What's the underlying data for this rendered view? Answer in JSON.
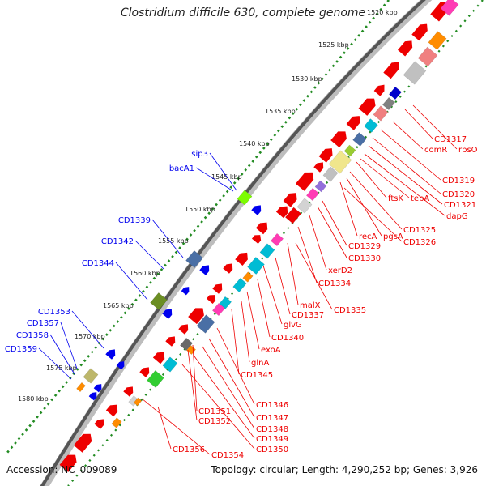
{
  "title": "Clostridium difficile 630, complete genome",
  "footer": {
    "accession": "Accession: NC_009089",
    "stats": "Topology: circular; Length: 4,290,252 bp; Genes: 3,926"
  },
  "colors": {
    "forward_genes": "#0000ee",
    "reverse_genes": "#ee0000",
    "backbone": "#555555",
    "ruler_dots": "#228b22"
  },
  "ruler": [
    {
      "label": "1520 kbp"
    },
    {
      "label": "1525 kbp"
    },
    {
      "label": "1530 kbp"
    },
    {
      "label": "1535 kbp"
    },
    {
      "label": "1540 kbp"
    },
    {
      "label": "1545 kbp"
    },
    {
      "label": "1550 kbp"
    },
    {
      "label": "1555 kbp"
    },
    {
      "label": "1560 kbp"
    },
    {
      "label": "1565 kbp"
    },
    {
      "label": "1570 kbp"
    },
    {
      "label": "1575 kbp"
    },
    {
      "label": "1580 kbp"
    }
  ],
  "forward_labels": [
    {
      "text": "sip3"
    },
    {
      "text": "bacA1"
    },
    {
      "text": "CD1339"
    },
    {
      "text": "CD1342"
    },
    {
      "text": "CD1344"
    },
    {
      "text": "CD1353"
    },
    {
      "text": "CD1357"
    },
    {
      "text": "CD1358"
    },
    {
      "text": "CD1359"
    }
  ],
  "reverse_labels": [
    {
      "text": "CD1317"
    },
    {
      "text": "comR"
    },
    {
      "text": "rpsO"
    },
    {
      "text": "CD1319"
    },
    {
      "text": "CD1320"
    },
    {
      "text": "CD1321"
    },
    {
      "text": "ftsK"
    },
    {
      "text": "tepA"
    },
    {
      "text": "dapG"
    },
    {
      "text": "CD1325"
    },
    {
      "text": "recA"
    },
    {
      "text": "pgsA"
    },
    {
      "text": "CD1326"
    },
    {
      "text": "CD1329"
    },
    {
      "text": "CD1330"
    },
    {
      "text": "xerD2"
    },
    {
      "text": "CD1334"
    },
    {
      "text": "malX"
    },
    {
      "text": "CD1335"
    },
    {
      "text": "CD1337"
    },
    {
      "text": "glvG"
    },
    {
      "text": "CD1340"
    },
    {
      "text": "exoA"
    },
    {
      "text": "glnA"
    },
    {
      "text": "CD1345"
    },
    {
      "text": "CD1346"
    },
    {
      "text": "CD1351"
    },
    {
      "text": "CD1347"
    },
    {
      "text": "CD1352"
    },
    {
      "text": "CD1348"
    },
    {
      "text": "CD1349"
    },
    {
      "text": "CD1350"
    },
    {
      "text": "CD1356"
    },
    {
      "text": "CD1354"
    }
  ]
}
